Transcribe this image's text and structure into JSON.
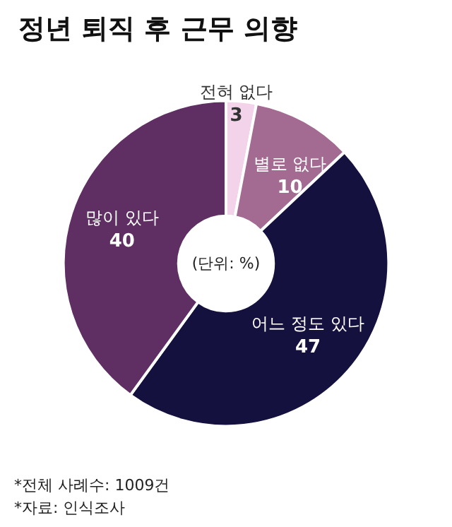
{
  "chart_data": {
    "type": "donut",
    "title": "정년 퇴직 후 근무 의향",
    "subtitle": "(단위: %)",
    "categories": [
      "전혀 없다",
      "별로 없다",
      "어느 정도 있다",
      "많이 있다"
    ],
    "values": [
      3,
      10,
      47,
      40
    ],
    "colors": [
      "#f2d3ea",
      "#a36b91",
      "#15113f",
      "#5f2e63"
    ],
    "data_labels": true,
    "legend": false,
    "annotations": [
      "*전체 사례수: 1009건",
      "*자료: 인식조사"
    ]
  }
}
